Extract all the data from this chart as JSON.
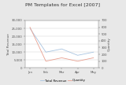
{
  "title": "PM Templates for Excel [2007]",
  "categories": [
    "Jan",
    "Feb",
    "Mar",
    "Apr",
    "May"
  ],
  "total_revenue": [
    25000,
    10000,
    12000,
    8000,
    10000
  ],
  "quantity": [
    600,
    100,
    150,
    100,
    150
  ],
  "ylabel_left": "Total Revenue",
  "ylabel_right": "Quantity",
  "legend1": "Total Revenue",
  "legend2": "Quantity",
  "line1_color": "#a8c4e0",
  "line2_color": "#e8a090",
  "bg_color": "#e8e8e8",
  "plot_bg_color": "#ffffff",
  "ylim_left": [
    0,
    30000
  ],
  "ylim_right": [
    0,
    700
  ],
  "title_fontsize": 4.5,
  "label_fontsize": 3.0,
  "tick_fontsize": 2.8,
  "legend_fontsize": 2.8
}
